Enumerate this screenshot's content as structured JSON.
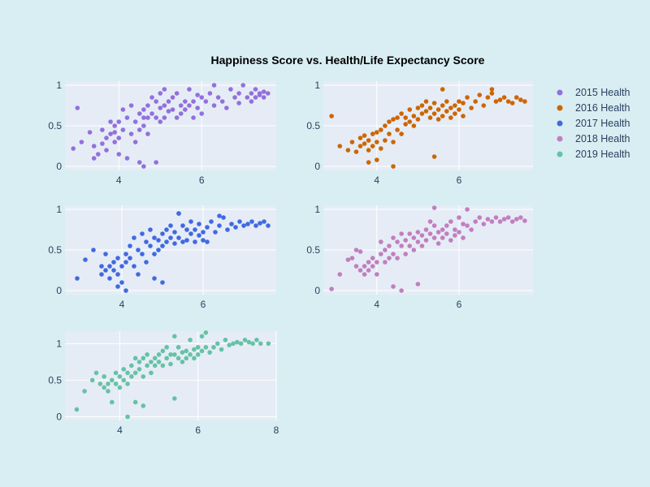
{
  "chart_data": {
    "type": "scatter",
    "title": "Happiness Score vs. Health/Life Expectancy Score",
    "xlabel": "",
    "ylabel": "",
    "grid": true,
    "legend_position": "top-right",
    "subplots": [
      {
        "series": "2015 Health",
        "color": "#9370db",
        "xlim": [
          2.7,
          7.8
        ],
        "ylim": [
          -0.05,
          1.05
        ],
        "xticks": [
          4,
          6
        ],
        "yticks": [
          0,
          0.5,
          1
        ],
        "x": [
          2.9,
          3.0,
          3.1,
          3.3,
          3.4,
          3.5,
          3.6,
          3.6,
          3.7,
          3.7,
          3.8,
          3.8,
          3.9,
          3.9,
          3.9,
          4.0,
          4.0,
          4.0,
          4.1,
          4.1,
          4.2,
          4.3,
          4.3,
          4.4,
          4.4,
          4.5,
          4.5,
          4.5,
          4.6,
          4.6,
          4.6,
          4.7,
          4.7,
          4.7,
          4.8,
          4.8,
          4.9,
          4.9,
          5.0,
          5.0,
          5.0,
          5.1,
          5.1,
          5.2,
          5.2,
          5.3,
          5.3,
          5.4,
          5.4,
          5.5,
          5.5,
          5.6,
          5.6,
          5.7,
          5.7,
          5.8,
          5.8,
          5.9,
          5.9,
          6.0,
          6.0,
          6.1,
          6.2,
          6.3,
          6.3,
          6.4,
          6.5,
          6.6,
          6.7,
          6.8,
          6.9,
          6.9,
          7.0,
          7.1,
          7.2,
          7.2,
          7.3,
          7.3,
          7.4,
          7.4,
          7.5,
          7.5,
          7.6,
          4.2,
          4.6,
          3.4,
          4.9,
          5.1
        ],
        "y": [
          0.22,
          0.72,
          0.3,
          0.42,
          0.25,
          0.15,
          0.45,
          0.28,
          0.35,
          0.2,
          0.4,
          0.55,
          0.3,
          0.5,
          0.42,
          0.15,
          0.35,
          0.55,
          0.45,
          0.7,
          0.6,
          0.75,
          0.4,
          0.3,
          0.55,
          0.65,
          0.45,
          0.05,
          0.7,
          0.5,
          0.6,
          0.75,
          0.6,
          0.4,
          0.85,
          0.65,
          0.8,
          0.6,
          0.72,
          0.55,
          0.9,
          0.75,
          0.6,
          0.8,
          0.68,
          0.85,
          0.7,
          0.6,
          0.9,
          0.75,
          0.65,
          0.8,
          0.7,
          0.95,
          0.75,
          0.8,
          0.6,
          0.72,
          0.88,
          0.85,
          0.65,
          0.8,
          0.9,
          0.75,
          1.0,
          0.85,
          0.8,
          0.72,
          0.95,
          0.85,
          0.9,
          0.78,
          1.0,
          0.85,
          0.9,
          0.8,
          0.95,
          0.85,
          0.9,
          0.88,
          0.92,
          0.85,
          0.9,
          0.1,
          0.0,
          0.1,
          0.05,
          0.95
        ]
      },
      {
        "series": "2016 Health",
        "color": "#cc6600",
        "xlim": [
          2.7,
          7.8
        ],
        "ylim": [
          -0.05,
          1.05
        ],
        "xticks": [
          4,
          6
        ],
        "yticks": [
          0,
          0.5,
          1
        ],
        "x": [
          2.9,
          3.1,
          3.3,
          3.4,
          3.5,
          3.6,
          3.6,
          3.7,
          3.7,
          3.8,
          3.8,
          3.9,
          3.9,
          4.0,
          4.0,
          4.1,
          4.1,
          4.2,
          4.2,
          4.3,
          4.3,
          4.4,
          4.4,
          4.5,
          4.5,
          4.6,
          4.6,
          4.7,
          4.7,
          4.8,
          4.8,
          4.9,
          4.9,
          5.0,
          5.0,
          5.1,
          5.1,
          5.2,
          5.2,
          5.3,
          5.3,
          5.4,
          5.4,
          5.5,
          5.5,
          5.6,
          5.6,
          5.7,
          5.7,
          5.8,
          5.8,
          5.9,
          5.9,
          6.0,
          6.0,
          6.1,
          6.1,
          6.2,
          6.3,
          6.4,
          6.5,
          6.6,
          6.7,
          6.8,
          6.9,
          7.0,
          7.1,
          7.2,
          7.3,
          7.4,
          7.5,
          7.6,
          3.8,
          4.0,
          4.4,
          5.4,
          5.6,
          6.8
        ],
        "y": [
          0.62,
          0.25,
          0.2,
          0.3,
          0.18,
          0.35,
          0.25,
          0.28,
          0.38,
          0.2,
          0.32,
          0.4,
          0.25,
          0.42,
          0.3,
          0.45,
          0.22,
          0.5,
          0.32,
          0.55,
          0.4,
          0.58,
          0.3,
          0.6,
          0.45,
          0.65,
          0.4,
          0.6,
          0.52,
          0.7,
          0.55,
          0.62,
          0.5,
          0.72,
          0.58,
          0.75,
          0.65,
          0.68,
          0.8,
          0.72,
          0.6,
          0.78,
          0.65,
          0.7,
          0.58,
          0.75,
          0.62,
          0.8,
          0.68,
          0.72,
          0.6,
          0.75,
          0.65,
          0.8,
          0.7,
          0.78,
          0.62,
          0.85,
          0.72,
          0.8,
          0.88,
          0.75,
          0.85,
          0.9,
          0.8,
          0.82,
          0.85,
          0.8,
          0.78,
          0.85,
          0.82,
          0.8,
          0.05,
          0.08,
          0.0,
          0.12,
          0.95,
          0.95
        ]
      },
      {
        "series": "2017 Health",
        "color": "#4169e1",
        "xlim": [
          2.6,
          7.8
        ],
        "ylim": [
          -0.05,
          1.05
        ],
        "xticks": [
          4,
          6
        ],
        "yticks": [
          0,
          0.5,
          1
        ],
        "x": [
          2.9,
          3.1,
          3.3,
          3.5,
          3.5,
          3.6,
          3.6,
          3.7,
          3.7,
          3.8,
          3.8,
          3.9,
          3.9,
          4.0,
          4.0,
          4.1,
          4.1,
          4.2,
          4.2,
          4.3,
          4.3,
          4.4,
          4.4,
          4.5,
          4.5,
          4.6,
          4.6,
          4.7,
          4.7,
          4.8,
          4.8,
          4.9,
          4.9,
          5.0,
          5.0,
          5.1,
          5.1,
          5.2,
          5.2,
          5.3,
          5.3,
          5.4,
          5.4,
          5.5,
          5.5,
          5.6,
          5.6,
          5.7,
          5.7,
          5.8,
          5.8,
          5.9,
          5.9,
          6.0,
          6.0,
          6.1,
          6.1,
          6.2,
          6.3,
          6.4,
          6.5,
          6.6,
          6.7,
          6.8,
          6.9,
          7.0,
          7.1,
          7.2,
          7.3,
          7.4,
          7.5,
          7.6,
          3.9,
          4.1,
          4.8,
          5.0,
          5.4,
          6.4
        ],
        "y": [
          0.15,
          0.38,
          0.5,
          0.3,
          0.2,
          0.45,
          0.25,
          0.3,
          0.15,
          0.35,
          0.25,
          0.4,
          0.2,
          0.3,
          0.1,
          0.45,
          0.35,
          0.55,
          0.4,
          0.65,
          0.3,
          0.5,
          0.2,
          0.7,
          0.45,
          0.6,
          0.35,
          0.55,
          0.75,
          0.65,
          0.45,
          0.62,
          0.5,
          0.55,
          0.7,
          0.6,
          0.75,
          0.65,
          0.8,
          0.72,
          0.58,
          0.95,
          0.65,
          0.8,
          0.6,
          0.75,
          0.62,
          0.7,
          0.85,
          0.6,
          0.75,
          0.68,
          0.82,
          0.62,
          0.72,
          0.78,
          0.6,
          0.85,
          0.72,
          0.8,
          0.9,
          0.75,
          0.82,
          0.78,
          0.85,
          0.8,
          0.82,
          0.85,
          0.8,
          0.83,
          0.85,
          0.8,
          0.05,
          0.0,
          0.15,
          0.1,
          0.95,
          0.92
        ]
      },
      {
        "series": "2018 Health",
        "color": "#c17fbe",
        "xlim": [
          2.7,
          7.8
        ],
        "ylim": [
          -0.05,
          1.05
        ],
        "xticks": [
          4,
          6
        ],
        "yticks": [
          0,
          0.5,
          1
        ],
        "x": [
          2.9,
          3.1,
          3.3,
          3.4,
          3.5,
          3.6,
          3.6,
          3.7,
          3.7,
          3.8,
          3.8,
          3.9,
          3.9,
          4.0,
          4.0,
          4.1,
          4.1,
          4.2,
          4.2,
          4.3,
          4.3,
          4.4,
          4.4,
          4.5,
          4.5,
          4.6,
          4.6,
          4.7,
          4.7,
          4.8,
          4.8,
          4.9,
          4.9,
          5.0,
          5.0,
          5.1,
          5.1,
          5.2,
          5.2,
          5.3,
          5.3,
          5.4,
          5.4,
          5.5,
          5.5,
          5.6,
          5.6,
          5.7,
          5.7,
          5.8,
          5.8,
          5.9,
          5.9,
          6.0,
          6.0,
          6.1,
          6.1,
          6.2,
          6.3,
          6.4,
          6.5,
          6.6,
          6.7,
          6.8,
          6.9,
          7.0,
          7.1,
          7.2,
          7.3,
          7.4,
          7.5,
          7.6,
          4.4,
          4.6,
          5.0,
          5.4,
          6.2,
          3.5
        ],
        "y": [
          0.02,
          0.2,
          0.38,
          0.4,
          0.3,
          0.25,
          0.48,
          0.3,
          0.2,
          0.35,
          0.25,
          0.4,
          0.3,
          0.35,
          0.2,
          0.45,
          0.6,
          0.5,
          0.35,
          0.55,
          0.4,
          0.65,
          0.45,
          0.6,
          0.4,
          0.55,
          0.7,
          0.62,
          0.45,
          0.7,
          0.55,
          0.65,
          0.5,
          0.6,
          0.72,
          0.68,
          0.55,
          0.75,
          0.62,
          0.85,
          0.7,
          0.65,
          0.8,
          0.72,
          0.58,
          0.75,
          0.65,
          0.8,
          0.7,
          0.85,
          0.62,
          0.75,
          0.68,
          0.9,
          0.72,
          0.82,
          0.65,
          0.8,
          0.75,
          0.85,
          0.9,
          0.82,
          0.88,
          0.85,
          0.9,
          0.85,
          0.88,
          0.9,
          0.85,
          0.88,
          0.9,
          0.86,
          0.05,
          0.0,
          0.08,
          1.02,
          1.0,
          0.5
        ]
      },
      {
        "series": "2019 Health",
        "color": "#66c2a5",
        "xlim": [
          2.6,
          8.0
        ],
        "ylim": [
          -0.05,
          1.17
        ],
        "xticks": [
          4,
          6,
          8
        ],
        "yticks": [
          0,
          0.5,
          1
        ],
        "x": [
          2.9,
          3.1,
          3.3,
          3.4,
          3.5,
          3.6,
          3.6,
          3.7,
          3.7,
          3.8,
          3.8,
          3.9,
          3.9,
          4.0,
          4.0,
          4.1,
          4.1,
          4.2,
          4.2,
          4.3,
          4.3,
          4.4,
          4.4,
          4.5,
          4.5,
          4.6,
          4.6,
          4.7,
          4.7,
          4.8,
          4.8,
          4.9,
          4.9,
          5.0,
          5.0,
          5.1,
          5.1,
          5.2,
          5.2,
          5.3,
          5.3,
          5.4,
          5.4,
          5.5,
          5.5,
          5.6,
          5.6,
          5.7,
          5.7,
          5.8,
          5.8,
          5.9,
          5.9,
          6.0,
          6.0,
          6.1,
          6.1,
          6.2,
          6.3,
          6.4,
          6.5,
          6.6,
          6.7,
          6.8,
          6.9,
          7.0,
          7.1,
          7.2,
          7.3,
          7.4,
          7.5,
          7.6,
          7.8,
          4.2,
          4.4,
          4.6,
          5.4,
          6.2
        ],
        "y": [
          0.1,
          0.35,
          0.5,
          0.6,
          0.45,
          0.55,
          0.4,
          0.45,
          0.35,
          0.2,
          0.5,
          0.6,
          0.45,
          0.55,
          0.4,
          0.65,
          0.5,
          0.6,
          0.45,
          0.7,
          0.55,
          0.8,
          0.6,
          0.75,
          0.65,
          0.8,
          0.55,
          0.7,
          0.85,
          0.75,
          0.6,
          0.8,
          0.7,
          0.85,
          0.75,
          0.9,
          0.7,
          0.8,
          0.95,
          0.85,
          0.72,
          1.1,
          0.85,
          0.8,
          0.95,
          0.88,
          0.75,
          0.9,
          0.8,
          1.05,
          0.85,
          0.92,
          0.8,
          0.95,
          0.85,
          1.1,
          0.9,
          0.95,
          0.88,
          0.95,
          1.0,
          0.92,
          1.05,
          0.98,
          1.0,
          1.02,
          1.0,
          1.05,
          1.02,
          1.0,
          1.05,
          1.0,
          1.0,
          0.0,
          0.2,
          0.15,
          0.25,
          1.15
        ]
      }
    ]
  },
  "legend": [
    {
      "label": "2015 Health",
      "color": "#9370db"
    },
    {
      "label": "2016 Health",
      "color": "#cc6600"
    },
    {
      "label": "2017 Health",
      "color": "#4169e1"
    },
    {
      "label": "2018 Health",
      "color": "#c17fbe"
    },
    {
      "label": "2019 Health",
      "color": "#66c2a5"
    }
  ]
}
